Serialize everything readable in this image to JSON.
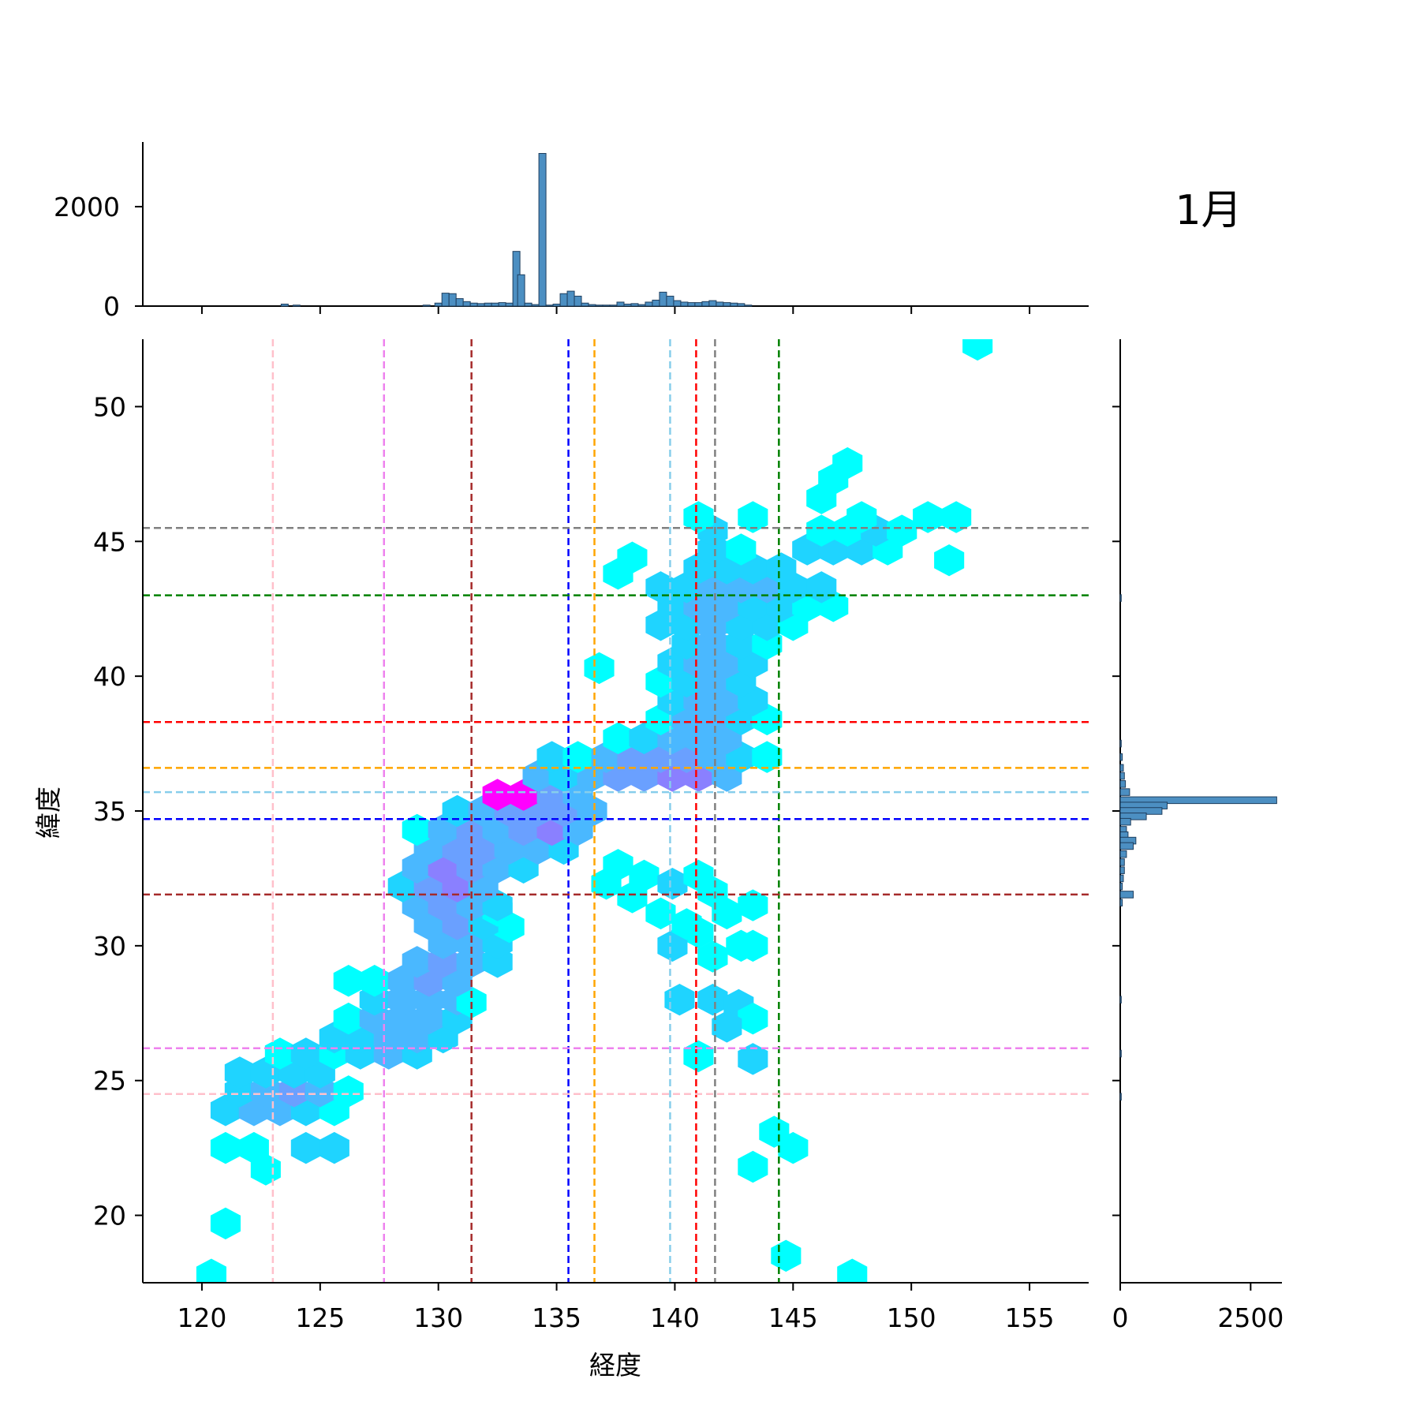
{
  "chart_data": {
    "type": "hexbin",
    "month_label": "1月",
    "xlabel": "経度",
    "ylabel": "緯度",
    "xlim": [
      117.5,
      157.5
    ],
    "ylim": [
      17.5,
      52.5
    ],
    "xticks": [
      120,
      125,
      130,
      135,
      140,
      145,
      150,
      155
    ],
    "yticks": [
      20,
      25,
      30,
      35,
      40,
      45,
      50
    ],
    "top_hist_yticks": [
      0,
      2000
    ],
    "top_hist_ylim": [
      0,
      3300
    ],
    "right_hist_xticks": [
      0,
      2500
    ],
    "right_hist_xlim": [
      0,
      3100
    ],
    "vlines": [
      {
        "x": 123.0,
        "color": "#ffc0cb"
      },
      {
        "x": 127.7,
        "color": "#ee82ee"
      },
      {
        "x": 131.4,
        "color": "#a52a2a"
      },
      {
        "x": 135.5,
        "color": "#0000ff"
      },
      {
        "x": 136.6,
        "color": "#ffa500"
      },
      {
        "x": 139.8,
        "color": "#87ceeb"
      },
      {
        "x": 140.9,
        "color": "#ff0000"
      },
      {
        "x": 141.7,
        "color": "#808080"
      },
      {
        "x": 144.4,
        "color": "#008000"
      }
    ],
    "hlines": [
      {
        "y": 45.5,
        "color": "#808080"
      },
      {
        "y": 43.0,
        "color": "#008000"
      },
      {
        "y": 38.3,
        "color": "#ff0000"
      },
      {
        "y": 36.6,
        "color": "#ffa500"
      },
      {
        "y": 35.7,
        "color": "#87ceeb"
      },
      {
        "y": 34.7,
        "color": "#0000ff"
      },
      {
        "y": 31.9,
        "color": "#a52a2a"
      },
      {
        "y": 26.2,
        "color": "#ee82ee"
      },
      {
        "y": 24.5,
        "color": "#ffc0cb"
      }
    ],
    "hex_colors": {
      "low": "#00ffff",
      "high": "#ff00ff"
    },
    "hexbins": [
      [
        120.4,
        17.8,
        0
      ],
      [
        121.0,
        19.7,
        0
      ],
      [
        147.5,
        17.8,
        0
      ],
      [
        152.8,
        52.3,
        0
      ],
      [
        144.7,
        18.5,
        0
      ],
      [
        121.0,
        22.5,
        0
      ],
      [
        122.2,
        22.5,
        0
      ],
      [
        122.7,
        21.7,
        0
      ],
      [
        124.4,
        22.5,
        1
      ],
      [
        125.6,
        22.5,
        1
      ],
      [
        121.0,
        23.9,
        1
      ],
      [
        122.2,
        23.9,
        2
      ],
      [
        123.3,
        23.9,
        2
      ],
      [
        124.4,
        23.9,
        1
      ],
      [
        125.6,
        23.9,
        0
      ],
      [
        121.6,
        24.6,
        1
      ],
      [
        122.7,
        24.6,
        2
      ],
      [
        123.9,
        24.6,
        3
      ],
      [
        125.0,
        24.6,
        2
      ],
      [
        126.2,
        24.6,
        0
      ],
      [
        121.6,
        25.3,
        1
      ],
      [
        122.7,
        25.3,
        1
      ],
      [
        123.9,
        25.3,
        1
      ],
      [
        125.0,
        25.3,
        1
      ],
      [
        123.3,
        26.0,
        0
      ],
      [
        124.4,
        26.0,
        1
      ],
      [
        125.6,
        26.0,
        0
      ],
      [
        126.7,
        26.0,
        1
      ],
      [
        127.9,
        26.0,
        2
      ],
      [
        129.1,
        26.0,
        1
      ],
      [
        125.6,
        26.6,
        1
      ],
      [
        126.7,
        26.6,
        1
      ],
      [
        127.9,
        26.6,
        2
      ],
      [
        129.1,
        26.6,
        2
      ],
      [
        130.2,
        26.6,
        1
      ],
      [
        126.2,
        27.3,
        0
      ],
      [
        127.3,
        27.3,
        2
      ],
      [
        128.5,
        27.3,
        2
      ],
      [
        129.6,
        27.3,
        2
      ],
      [
        130.8,
        27.3,
        1
      ],
      [
        127.3,
        28.0,
        1
      ],
      [
        128.5,
        28.0,
        2
      ],
      [
        129.6,
        28.0,
        2
      ],
      [
        130.8,
        28.0,
        2
      ],
      [
        131.4,
        27.9,
        0
      ],
      [
        126.2,
        28.7,
        0
      ],
      [
        127.3,
        28.7,
        0
      ],
      [
        128.5,
        28.7,
        2
      ],
      [
        129.6,
        28.7,
        3
      ],
      [
        130.8,
        28.7,
        2
      ],
      [
        129.1,
        29.4,
        2
      ],
      [
        130.2,
        29.4,
        3
      ],
      [
        131.4,
        29.4,
        2
      ],
      [
        132.5,
        29.4,
        1
      ],
      [
        130.2,
        30.1,
        2
      ],
      [
        131.4,
        30.1,
        2
      ],
      [
        132.5,
        30.1,
        1
      ],
      [
        133.0,
        30.7,
        0
      ],
      [
        129.6,
        30.8,
        2
      ],
      [
        130.8,
        30.8,
        3
      ],
      [
        131.9,
        30.8,
        1
      ],
      [
        132.5,
        31.3,
        0
      ],
      [
        129.1,
        31.5,
        2
      ],
      [
        130.2,
        31.5,
        3
      ],
      [
        131.4,
        31.5,
        2
      ],
      [
        132.5,
        31.5,
        1
      ],
      [
        128.5,
        32.2,
        1
      ],
      [
        129.6,
        32.2,
        3
      ],
      [
        130.8,
        32.2,
        4
      ],
      [
        131.9,
        32.2,
        2
      ],
      [
        129.1,
        32.9,
        2
      ],
      [
        130.2,
        32.9,
        4
      ],
      [
        131.4,
        32.9,
        3
      ],
      [
        132.5,
        32.9,
        2
      ],
      [
        133.6,
        32.9,
        1
      ],
      [
        129.6,
        33.6,
        2
      ],
      [
        130.8,
        33.6,
        3
      ],
      [
        131.9,
        33.6,
        3
      ],
      [
        133.0,
        33.6,
        2
      ],
      [
        134.2,
        33.6,
        2
      ],
      [
        135.3,
        33.6,
        1
      ],
      [
        129.1,
        34.3,
        0
      ],
      [
        130.2,
        34.3,
        2
      ],
      [
        131.4,
        34.3,
        3
      ],
      [
        132.5,
        34.3,
        2
      ],
      [
        133.6,
        34.3,
        3
      ],
      [
        134.8,
        34.3,
        4
      ],
      [
        135.9,
        34.3,
        2
      ],
      [
        130.8,
        35.0,
        1
      ],
      [
        131.9,
        35.0,
        2
      ],
      [
        133.0,
        35.0,
        3
      ],
      [
        134.2,
        35.0,
        3
      ],
      [
        135.3,
        35.0,
        3
      ],
      [
        136.5,
        35.0,
        2
      ],
      [
        132.5,
        35.6,
        6
      ],
      [
        133.6,
        35.6,
        6
      ],
      [
        134.8,
        35.6,
        3
      ],
      [
        135.9,
        35.6,
        2
      ],
      [
        134.2,
        36.3,
        2
      ],
      [
        135.3,
        36.3,
        1
      ],
      [
        136.5,
        36.3,
        2
      ],
      [
        137.6,
        36.3,
        3
      ],
      [
        138.7,
        36.3,
        3
      ],
      [
        139.9,
        36.3,
        4
      ],
      [
        141.0,
        36.3,
        4
      ],
      [
        142.2,
        36.3,
        2
      ],
      [
        134.8,
        37.0,
        1
      ],
      [
        135.9,
        37.0,
        0
      ],
      [
        137.1,
        37.0,
        2
      ],
      [
        138.2,
        37.0,
        3
      ],
      [
        139.4,
        37.0,
        3
      ],
      [
        140.5,
        37.0,
        3
      ],
      [
        141.6,
        37.0,
        2
      ],
      [
        142.8,
        37.0,
        1
      ],
      [
        143.9,
        37.0,
        0
      ],
      [
        137.6,
        37.7,
        0
      ],
      [
        138.7,
        37.7,
        1
      ],
      [
        139.9,
        37.7,
        2
      ],
      [
        141.0,
        37.7,
        2
      ],
      [
        142.2,
        37.7,
        2
      ],
      [
        139.4,
        38.4,
        0
      ],
      [
        140.5,
        38.4,
        2
      ],
      [
        141.6,
        38.4,
        2
      ],
      [
        142.8,
        38.4,
        1
      ],
      [
        143.9,
        38.4,
        0
      ],
      [
        139.9,
        39.1,
        1
      ],
      [
        141.0,
        39.1,
        2
      ],
      [
        142.2,
        39.1,
        2
      ],
      [
        143.3,
        39.1,
        1
      ],
      [
        139.4,
        39.8,
        0
      ],
      [
        140.5,
        39.8,
        1
      ],
      [
        141.6,
        39.8,
        2
      ],
      [
        142.8,
        39.8,
        1
      ],
      [
        136.8,
        40.3,
        0
      ],
      [
        139.9,
        40.5,
        1
      ],
      [
        141.0,
        40.5,
        2
      ],
      [
        142.2,
        40.5,
        2
      ],
      [
        143.3,
        40.5,
        1
      ],
      [
        140.5,
        41.2,
        1
      ],
      [
        141.6,
        41.2,
        2
      ],
      [
        142.8,
        41.2,
        1
      ],
      [
        143.9,
        41.2,
        0
      ],
      [
        139.4,
        41.9,
        1
      ],
      [
        140.5,
        41.9,
        1
      ],
      [
        141.6,
        41.9,
        2
      ],
      [
        142.8,
        41.9,
        1
      ],
      [
        143.9,
        41.9,
        1
      ],
      [
        145.0,
        41.9,
        0
      ],
      [
        139.9,
        42.6,
        1
      ],
      [
        141.0,
        42.6,
        2
      ],
      [
        142.2,
        42.6,
        2
      ],
      [
        143.3,
        42.6,
        1
      ],
      [
        144.5,
        42.6,
        1
      ],
      [
        145.6,
        42.6,
        0
      ],
      [
        146.7,
        42.6,
        0
      ],
      [
        139.4,
        43.3,
        1
      ],
      [
        140.5,
        43.3,
        1
      ],
      [
        141.6,
        43.3,
        2
      ],
      [
        142.8,
        43.3,
        2
      ],
      [
        143.9,
        43.3,
        2
      ],
      [
        145.0,
        43.3,
        1
      ],
      [
        146.2,
        43.3,
        1
      ],
      [
        137.6,
        43.8,
        0
      ],
      [
        138.2,
        44.4,
        0
      ],
      [
        141.0,
        44.0,
        1
      ],
      [
        142.2,
        44.0,
        1
      ],
      [
        143.3,
        44.0,
        1
      ],
      [
        144.5,
        44.0,
        1
      ],
      [
        141.6,
        44.7,
        1
      ],
      [
        142.8,
        44.7,
        0
      ],
      [
        145.6,
        44.7,
        1
      ],
      [
        146.7,
        44.7,
        1
      ],
      [
        147.9,
        44.7,
        1
      ],
      [
        149.0,
        44.7,
        0
      ],
      [
        141.6,
        45.4,
        1
      ],
      [
        146.2,
        45.4,
        0
      ],
      [
        147.3,
        45.4,
        0
      ],
      [
        148.5,
        45.4,
        1
      ],
      [
        149.6,
        45.4,
        0
      ],
      [
        141.0,
        45.9,
        0
      ],
      [
        143.3,
        45.9,
        0
      ],
      [
        147.9,
        45.9,
        0
      ],
      [
        150.7,
        45.9,
        0
      ],
      [
        151.9,
        45.9,
        0
      ],
      [
        151.6,
        44.3,
        0
      ],
      [
        146.2,
        46.6,
        0
      ],
      [
        146.7,
        47.3,
        0
      ],
      [
        147.3,
        47.9,
        0
      ],
      [
        137.6,
        33.0,
        0
      ],
      [
        138.7,
        32.6,
        0
      ],
      [
        137.1,
        32.3,
        0
      ],
      [
        138.2,
        31.8,
        0
      ],
      [
        139.4,
        31.2,
        0
      ],
      [
        139.9,
        32.3,
        1
      ],
      [
        141.0,
        32.6,
        0
      ],
      [
        141.6,
        32.0,
        0
      ],
      [
        142.2,
        31.2,
        0
      ],
      [
        143.3,
        31.5,
        0
      ],
      [
        141.0,
        30.5,
        0
      ],
      [
        142.8,
        30.0,
        0
      ],
      [
        139.9,
        30.0,
        1
      ],
      [
        140.5,
        30.8,
        0
      ],
      [
        141.6,
        29.6,
        0
      ],
      [
        143.3,
        30.0,
        0
      ],
      [
        140.2,
        28.0,
        1
      ],
      [
        141.6,
        28.0,
        1
      ],
      [
        142.7,
        27.8,
        1
      ],
      [
        143.3,
        27.3,
        0
      ],
      [
        142.2,
        27.0,
        1
      ],
      [
        141.0,
        25.9,
        0
      ],
      [
        143.3,
        25.8,
        1
      ],
      [
        144.2,
        23.1,
        0
      ],
      [
        145.0,
        22.5,
        0
      ],
      [
        143.3,
        21.8,
        0
      ]
    ],
    "top_hist": [
      [
        123.5,
        40
      ],
      [
        124.0,
        20
      ],
      [
        129.5,
        20
      ],
      [
        130.0,
        60
      ],
      [
        130.3,
        260
      ],
      [
        130.6,
        250
      ],
      [
        130.9,
        150
      ],
      [
        131.2,
        90
      ],
      [
        131.5,
        60
      ],
      [
        131.8,
        50
      ],
      [
        132.1,
        60
      ],
      [
        132.4,
        60
      ],
      [
        132.7,
        70
      ],
      [
        133.0,
        60
      ],
      [
        133.3,
        1100
      ],
      [
        133.5,
        630
      ],
      [
        133.8,
        60
      ],
      [
        134.1,
        30
      ],
      [
        134.4,
        3070
      ],
      [
        134.7,
        20
      ],
      [
        135.0,
        40
      ],
      [
        135.3,
        250
      ],
      [
        135.6,
        300
      ],
      [
        135.9,
        200
      ],
      [
        136.2,
        60
      ],
      [
        136.5,
        30
      ],
      [
        136.8,
        20
      ],
      [
        137.1,
        20
      ],
      [
        137.4,
        20
      ],
      [
        137.7,
        80
      ],
      [
        138.0,
        40
      ],
      [
        138.3,
        50
      ],
      [
        138.6,
        30
      ],
      [
        138.9,
        80
      ],
      [
        139.2,
        120
      ],
      [
        139.5,
        280
      ],
      [
        139.8,
        200
      ],
      [
        140.1,
        110
      ],
      [
        140.4,
        80
      ],
      [
        140.7,
        70
      ],
      [
        141.0,
        70
      ],
      [
        141.3,
        90
      ],
      [
        141.6,
        110
      ],
      [
        141.9,
        80
      ],
      [
        142.2,
        70
      ],
      [
        142.5,
        60
      ],
      [
        142.8,
        50
      ],
      [
        143.1,
        20
      ]
    ],
    "right_hist": [
      [
        42.9,
        20
      ],
      [
        37.5,
        20
      ],
      [
        37.0,
        40
      ],
      [
        36.6,
        60
      ],
      [
        36.3,
        80
      ],
      [
        36.0,
        100
      ],
      [
        35.7,
        180
      ],
      [
        35.4,
        3000
      ],
      [
        35.2,
        900
      ],
      [
        35.0,
        800
      ],
      [
        34.8,
        500
      ],
      [
        34.6,
        200
      ],
      [
        34.3,
        120
      ],
      [
        34.1,
        150
      ],
      [
        33.9,
        300
      ],
      [
        33.7,
        250
      ],
      [
        33.4,
        120
      ],
      [
        33.1,
        80
      ],
      [
        32.8,
        80
      ],
      [
        32.5,
        60
      ],
      [
        32.2,
        40
      ],
      [
        31.9,
        250
      ],
      [
        31.6,
        40
      ],
      [
        28.0,
        20
      ],
      [
        26.0,
        20
      ],
      [
        24.4,
        20
      ]
    ]
  }
}
